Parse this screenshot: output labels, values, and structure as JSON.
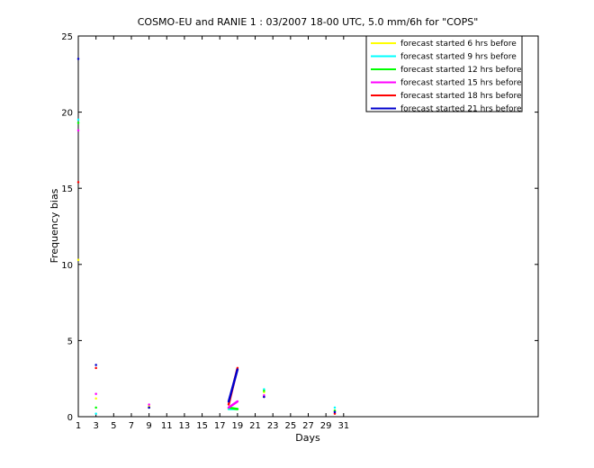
{
  "chart_data": {
    "type": "line",
    "title": "COSMO-EU and RANIE 1 : 03/2007 18-00 UTC, 5.0 mm/6h for \"COPS\"",
    "x_label": "Days",
    "y_label": "Frequency bias",
    "x": [
      1,
      2,
      3,
      4,
      5,
      6,
      7,
      8,
      9,
      10,
      11,
      12,
      13,
      14,
      15,
      16,
      17,
      18,
      19,
      20,
      21,
      22,
      23,
      24,
      25,
      26,
      27,
      28,
      29,
      30,
      31
    ],
    "xlim": [
      1,
      53
    ],
    "xticks": [
      1,
      3,
      5,
      7,
      9,
      11,
      13,
      15,
      17,
      19,
      21,
      23,
      25,
      27,
      29,
      31
    ],
    "ylim": [
      0,
      25
    ],
    "yticks": [
      0,
      5,
      10,
      15,
      20,
      25
    ],
    "legend_position": "upper right",
    "series": [
      {
        "name": "forecast started 6 hrs before",
        "color": "#ffff00",
        "values": [
          10.3,
          null,
          1.2,
          null,
          null,
          null,
          null,
          null,
          0.7,
          null,
          null,
          null,
          null,
          null,
          null,
          null,
          null,
          0.5,
          0.5,
          null,
          null,
          1.6,
          null,
          null,
          null,
          null,
          null,
          null,
          null,
          0.4,
          null
        ]
      },
      {
        "name": "forecast started 9 hrs before",
        "color": "#00ffff",
        "values": [
          19.5,
          null,
          0.2,
          null,
          null,
          null,
          null,
          null,
          0.6,
          null,
          null,
          null,
          null,
          null,
          null,
          null,
          null,
          0.5,
          0.5,
          null,
          null,
          1.8,
          null,
          null,
          null,
          null,
          null,
          null,
          null,
          0.6,
          null
        ]
      },
      {
        "name": "forecast started 12 hrs before",
        "color": "#00ff00",
        "values": [
          19.3,
          null,
          0.6,
          null,
          null,
          null,
          null,
          null,
          0.6,
          null,
          null,
          null,
          null,
          null,
          null,
          null,
          null,
          0.6,
          0.5,
          null,
          null,
          1.7,
          null,
          null,
          null,
          null,
          null,
          null,
          null,
          0.4,
          null
        ]
      },
      {
        "name": "forecast started 15 hrs before",
        "color": "#ff00ff",
        "values": [
          18.8,
          null,
          1.5,
          null,
          null,
          null,
          null,
          null,
          0.8,
          null,
          null,
          null,
          null,
          null,
          null,
          null,
          null,
          0.6,
          1.0,
          null,
          null,
          1.4,
          null,
          null,
          null,
          null,
          null,
          null,
          null,
          0.3,
          null
        ]
      },
      {
        "name": "forecast started 18 hrs before",
        "color": "#ff0000",
        "values": [
          15.4,
          null,
          3.2,
          null,
          null,
          null,
          null,
          null,
          0.6,
          null,
          null,
          null,
          null,
          null,
          null,
          null,
          null,
          0.8,
          3.2,
          null,
          null,
          1.3,
          null,
          null,
          null,
          null,
          null,
          null,
          null,
          0.2,
          null
        ]
      },
      {
        "name": "forecast started 21 hrs before",
        "color": "#0000cc",
        "values": [
          23.5,
          null,
          3.4,
          null,
          null,
          null,
          null,
          null,
          0.6,
          null,
          null,
          null,
          null,
          null,
          null,
          null,
          null,
          1.0,
          3.1,
          null,
          null,
          1.3,
          null,
          null,
          null,
          null,
          null,
          null,
          null,
          0.3,
          null
        ]
      }
    ]
  }
}
